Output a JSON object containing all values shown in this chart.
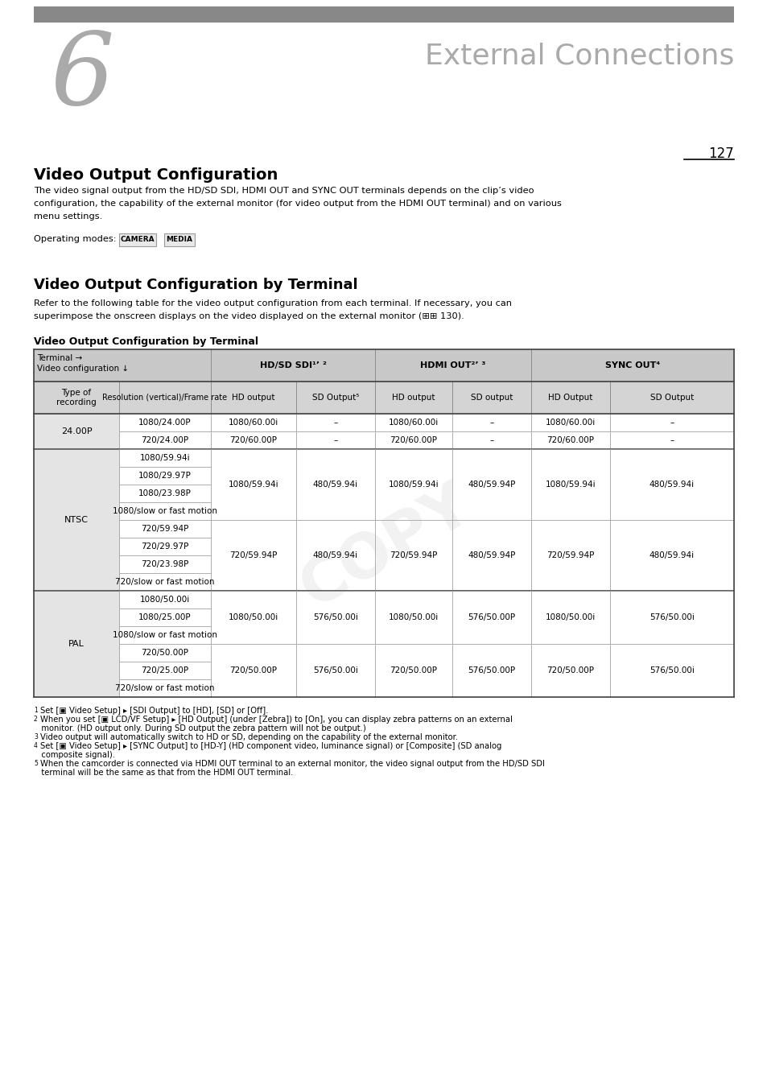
{
  "bg_color": "#ffffff",
  "header_bar_color": "#808080",
  "chapter_number": "6",
  "chapter_title": "External Connections",
  "page_number": "127",
  "section1_title": "Video Output Configuration",
  "section1_body1": "The video signal output from the HD/SD SDI, HDMI OUT and SYNC OUT terminals depends on the clip’s video",
  "section1_body2": "configuration, the capability of the external monitor (for video output from the HDMI OUT terminal) and on various",
  "section1_body3": "menu settings.",
  "operating_modes_label": "Operating modes:",
  "operating_modes": [
    "CAMERA",
    "MEDIA"
  ],
  "section2_title": "Video Output Configuration by Terminal",
  "section2_body1": "Refer to the following table for the video output configuration from each terminal. If necessary, you can",
  "section2_body2": "superimpose the onscreen displays on the video displayed on the external monitor (⊞⊞ 130).",
  "table_title": "Video Output Configuration by Terminal",
  "footnotes": [
    {
      "num": "1",
      "text": "Set [▣ Video Setup] ▸ [SDI Output] to [HD], [SD] or [Off]."
    },
    {
      "num": "2",
      "text": "When you set [▣ LCD/VF Setup] ▸ [HD Output] (under [Zebra]) to [On], you can display zebra patterns on an external"
    },
    {
      "num": "",
      "text": "   monitor. (HD output only. During SD output the zebra pattern will not be output.)"
    },
    {
      "num": "3",
      "text": "Video output will automatically switch to HD or SD, depending on the capability of the external monitor."
    },
    {
      "num": "4",
      "text": "Set [▣ Video Setup] ▸ [SYNC Output] to [HD-Y] (HD component video, luminance signal) or [Composite] (SD analog"
    },
    {
      "num": "",
      "text": "   composite signal)."
    },
    {
      "num": "5",
      "text": "When the camcorder is connected via HDMI OUT terminal to an external monitor, the video signal output from the HD/SD SDI"
    },
    {
      "num": "",
      "text": "   terminal will be the same as that from the HDMI OUT terminal."
    }
  ]
}
